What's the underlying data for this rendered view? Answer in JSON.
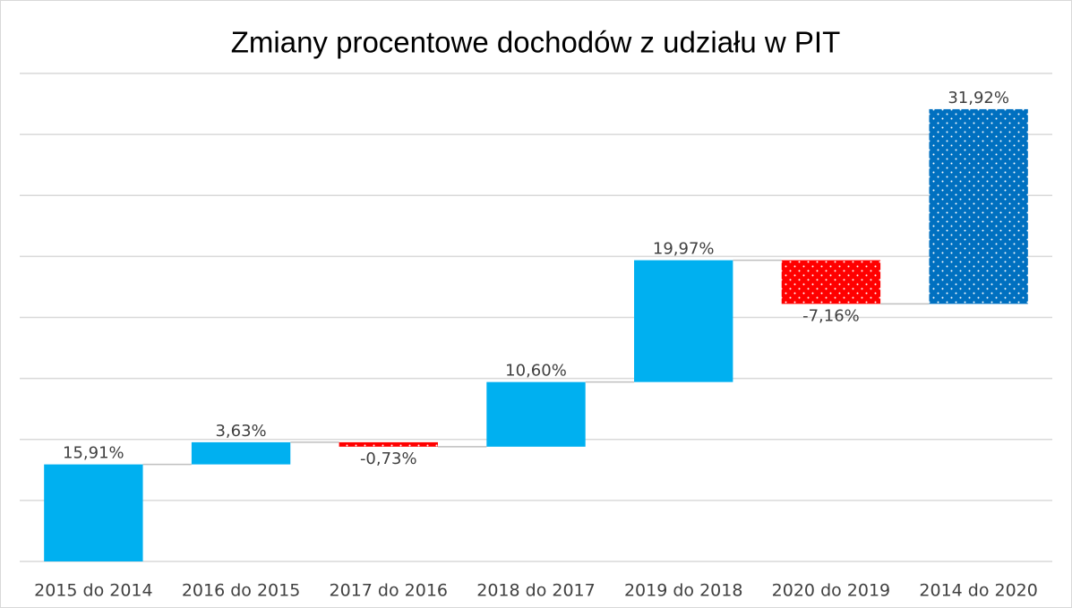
{
  "chart_data": {
    "type": "waterfall",
    "title": "Zmiany procentowe dochodów z udziału w PIT",
    "categories": [
      "2015 do 2014",
      "2016 do 2015",
      "2017 do 2016",
      "2018 do 2017",
      "2019 do 2018",
      "2020 do 2019",
      "2014 do 2020"
    ],
    "values": [
      15.91,
      3.63,
      -0.73,
      10.6,
      19.97,
      -7.16,
      31.92
    ],
    "value_labels": [
      "15,91%",
      "3,63%",
      "-0,73%",
      "10,60%",
      "19,97%",
      "-7,16%",
      "31,92%"
    ],
    "colors": [
      "#00b0f0",
      "#00b0f0",
      "#ff0000",
      "#00b0f0",
      "#00b0f0",
      "#ff0000",
      "#0070c0"
    ],
    "dotted": [
      false,
      false,
      true,
      false,
      false,
      true,
      true
    ],
    "ylim": [
      0,
      80
    ],
    "yticks": [
      0,
      10,
      20,
      30,
      40,
      50,
      60,
      70,
      80
    ],
    "grid": true
  }
}
